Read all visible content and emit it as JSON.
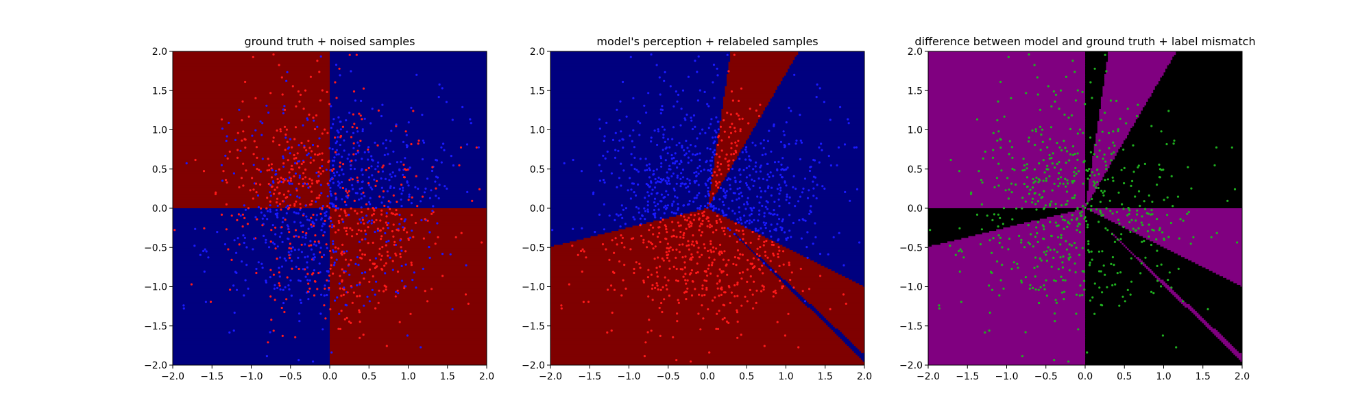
{
  "chart_data": [
    {
      "type": "scatter",
      "title": "ground truth + noised samples",
      "xlabel": "",
      "ylabel": "",
      "xlim": [
        -2.0,
        2.0
      ],
      "ylim": [
        -2.0,
        2.0
      ],
      "xticks": [
        "−2.0",
        "−1.5",
        "−1.0",
        "−0.5",
        "0.0",
        "0.5",
        "1.0",
        "1.5",
        "2.0"
      ],
      "yticks": [
        "−2.0",
        "−1.5",
        "−1.0",
        "−0.5",
        "0.0",
        "0.5",
        "1.0",
        "1.5",
        "2.0"
      ],
      "background": "quadrant decision regions (XOR): upper-left and lower-right dark red, upper-right and lower-left dark blue",
      "region_colors": {
        "class_a": "#7f0000",
        "class_b": "#00007f"
      },
      "point_colors": {
        "class_a": "#ff1a1a",
        "class_b": "#1a1aff"
      },
      "points_per_panel_approx": 1200,
      "grid": false,
      "legend": "none"
    },
    {
      "type": "scatter",
      "title": "model's perception + relabeled samples",
      "xlabel": "",
      "ylabel": "",
      "xlim": [
        -2.0,
        2.0
      ],
      "ylim": [
        -2.0,
        2.0
      ],
      "xticks": [
        "−2.0",
        "−1.5",
        "−1.0",
        "−0.5",
        "0.0",
        "0.5",
        "1.0",
        "1.5",
        "2.0"
      ],
      "yticks": [
        "−2.0",
        "−1.5",
        "−1.0",
        "−0.5",
        "0.0",
        "0.5",
        "1.0",
        "1.5",
        "2.0"
      ],
      "background": "angular wedge regions radiating from the origin; dark blue majority, dark red wedges toward upper-center and lower half",
      "region_colors": {
        "class_a": "#7f0000",
        "class_b": "#00007f"
      },
      "point_colors": {
        "class_a": "#ff1a1a",
        "class_b": "#1a1aff"
      },
      "grid": false,
      "legend": "none"
    },
    {
      "type": "scatter",
      "title": "difference between model and ground truth + label mismatch",
      "xlabel": "",
      "ylabel": "",
      "xlim": [
        -2.0,
        2.0
      ],
      "ylim": [
        -2.0,
        2.0
      ],
      "xticks": [
        "−2.0",
        "−1.5",
        "−1.0",
        "−0.5",
        "0.0",
        "0.5",
        "1.0",
        "1.5",
        "2.0"
      ],
      "yticks": [
        "−2.0",
        "−1.5",
        "−1.0",
        "−0.5",
        "0.0",
        "0.5",
        "1.0",
        "1.5",
        "2.0"
      ],
      "background": "black where model agrees with ground truth, purple where they differ",
      "region_colors": {
        "agree": "#000000",
        "disagree": "#800080"
      },
      "point_colors": {
        "mismatch": "#1fb01f"
      },
      "grid": false,
      "legend": "none"
    }
  ]
}
